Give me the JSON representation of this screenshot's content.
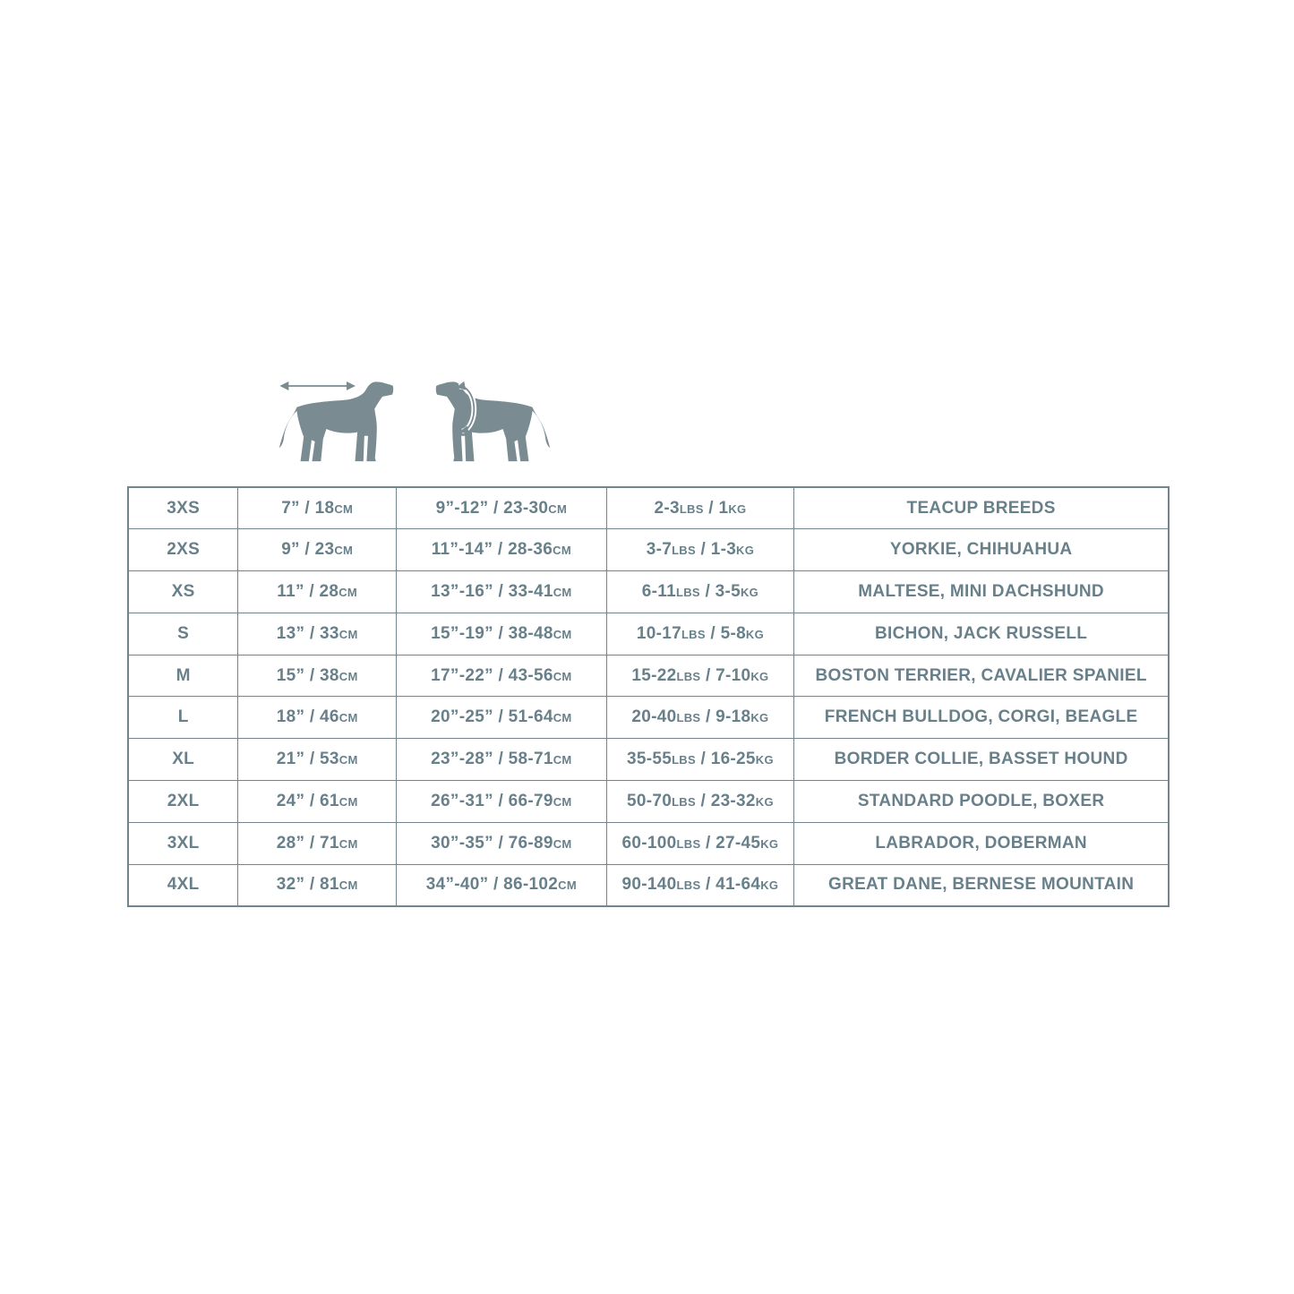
{
  "style": {
    "background_color": "#ffffff",
    "table_text_color": "#68808a",
    "table_border_color": "#72858c",
    "dog_silhouette_color": "#7a8c92"
  },
  "illustration": {
    "left_icon": "dog-back-length-arrow-icon",
    "right_icon": "dog-chest-girth-arrow-icon"
  },
  "chart_data": {
    "type": "table",
    "columns": [
      "size",
      "back_length",
      "chest_girth",
      "weight",
      "breeds"
    ],
    "rows": [
      {
        "size": "3XS",
        "back_length": "7” / 18cm",
        "chest_girth": "9”-12” / 23-30cm",
        "weight": "2-3lbs / 1kg",
        "breeds": "TEACUP BREEDS"
      },
      {
        "size": "2XS",
        "back_length": "9” / 23cm",
        "chest_girth": "11”-14” / 28-36cm",
        "weight": "3-7lbs / 1-3kg",
        "breeds": "YORKIE, CHIHUAHUA"
      },
      {
        "size": "XS",
        "back_length": "11” / 28cm",
        "chest_girth": "13”-16” / 33-41cm",
        "weight": "6-11lbs / 3-5kg",
        "breeds": "MALTESE, MINI DACHSHUND"
      },
      {
        "size": "S",
        "back_length": "13” / 33cm",
        "chest_girth": "15”-19” / 38-48cm",
        "weight": "10-17lbs / 5-8kg",
        "breeds": "BICHON, JACK RUSSELL"
      },
      {
        "size": "M",
        "back_length": "15” / 38cm",
        "chest_girth": "17”-22” / 43-56cm",
        "weight": "15-22lbs / 7-10kg",
        "breeds": "BOSTON TERRIER, CAVALIER SPANIEL"
      },
      {
        "size": "L",
        "back_length": "18” / 46cm",
        "chest_girth": "20”-25” / 51-64cm",
        "weight": "20-40lbs / 9-18kg",
        "breeds": "FRENCH BULLDOG, CORGI, BEAGLE"
      },
      {
        "size": "XL",
        "back_length": "21” / 53cm",
        "chest_girth": "23”-28” / 58-71cm",
        "weight": "35-55lbs / 16-25kg",
        "breeds": "BORDER COLLIE, BASSET HOUND"
      },
      {
        "size": "2XL",
        "back_length": "24” / 61cm",
        "chest_girth": "26”-31” / 66-79cm",
        "weight": "50-70lbs / 23-32kg",
        "breeds": "STANDARD POODLE, BOXER"
      },
      {
        "size": "3XL",
        "back_length": "28” / 71cm",
        "chest_girth": "30”-35” / 76-89cm",
        "weight": "60-100lbs / 27-45kg",
        "breeds": "LABRADOR, DOBERMAN"
      },
      {
        "size": "4XL",
        "back_length": "32” / 81cm",
        "chest_girth": "34”-40” / 86-102cm",
        "weight": "90-140lbs / 41-64kg",
        "breeds": "GREAT DANE, BERNESE MOUNTAIN"
      }
    ]
  }
}
